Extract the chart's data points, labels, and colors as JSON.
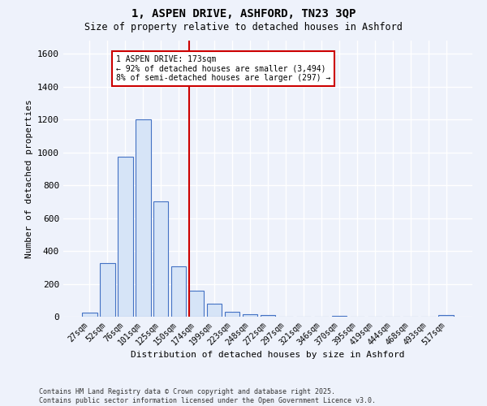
{
  "title1": "1, ASPEN DRIVE, ASHFORD, TN23 3QP",
  "title2": "Size of property relative to detached houses in Ashford",
  "xlabel": "Distribution of detached houses by size in Ashford",
  "ylabel": "Number of detached properties",
  "bin_labels": [
    "27sqm",
    "52sqm",
    "76sqm",
    "101sqm",
    "125sqm",
    "150sqm",
    "174sqm",
    "199sqm",
    "223sqm",
    "248sqm",
    "272sqm",
    "297sqm",
    "321sqm",
    "346sqm",
    "370sqm",
    "395sqm",
    "419sqm",
    "444sqm",
    "468sqm",
    "493sqm",
    "517sqm"
  ],
  "bin_values": [
    25,
    325,
    975,
    1200,
    700,
    305,
    160,
    78,
    30,
    15,
    8,
    0,
    0,
    0,
    5,
    0,
    0,
    0,
    0,
    0,
    12
  ],
  "bar_color": "#d6e4f7",
  "bar_edge_color": "#4472c4",
  "annotation_line1": "1 ASPEN DRIVE: 173sqm",
  "annotation_line2": "← 92% of detached houses are smaller (3,494)",
  "annotation_line3": "8% of semi-detached houses are larger (297) →",
  "annotation_box_color": "#ffffff",
  "annotation_box_edge": "#cc0000",
  "vline_color": "#cc0000",
  "vline_x_idx": 6,
  "bar_width": 0.85,
  "ylim": [
    0,
    1680
  ],
  "yticks": [
    0,
    200,
    400,
    600,
    800,
    1000,
    1200,
    1400,
    1600
  ],
  "footer1": "Contains HM Land Registry data © Crown copyright and database right 2025.",
  "footer2": "Contains public sector information licensed under the Open Government Licence v3.0.",
  "bg_color": "#eef2fb",
  "grid_color": "#ffffff"
}
